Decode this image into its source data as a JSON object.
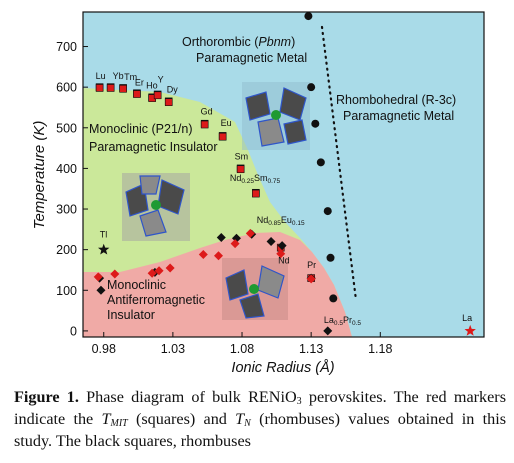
{
  "chart_data": {
    "type": "scatter",
    "xlabel": "Ionic Radius (Å)",
    "ylabel": "Temperature (K)",
    "xlim": [
      0.965,
      1.255
    ],
    "ylim": [
      -15,
      785
    ],
    "xticks": [
      "0.98",
      "1.03",
      "1.08",
      "1.13",
      "1.18"
    ],
    "yticks": [
      "0",
      "100",
      "200",
      "300",
      "400",
      "500",
      "600",
      "700"
    ],
    "regions": {
      "orthorhombic": {
        "line1": "Orthorombic (Pbnm)",
        "line2": "Paramagnetic Metal",
        "color": "#a9dbe8"
      },
      "rhombohedral": {
        "line1": "Rhombohedral (R-3c)",
        "line2": "Paramagnetic Metal",
        "color": "#a9dbe8"
      },
      "monoclinic_ins": {
        "line1": "Monoclinic (P21/n)",
        "line2": "Paramagnetic Insulator",
        "color": "#cbe89a"
      },
      "monoclinic_afm": {
        "line1": "Monoclinic",
        "line2": "Antiferromagnetic",
        "line3": "Insulator",
        "color": "#f0aaa6"
      }
    },
    "element_labels": [
      {
        "text": "Lu",
        "x": 0.977,
        "y": 600
      },
      {
        "text": "Yb",
        "x": 0.985,
        "y": 600
      },
      {
        "text": "Tm",
        "x": 0.994,
        "y": 598
      },
      {
        "text": "Er",
        "x": 1.004,
        "y": 585
      },
      {
        "text": "Ho",
        "x": 1.015,
        "y": 575
      },
      {
        "text": "Y",
        "x": 1.019,
        "y": 582
      },
      {
        "text": "Dy",
        "x": 1.027,
        "y": 565
      },
      {
        "text": "Gd",
        "x": 1.053,
        "y": 510
      },
      {
        "text": "Eu",
        "x": 1.066,
        "y": 480
      },
      {
        "text": "Sm",
        "x": 1.079,
        "y": 400
      },
      {
        "text": "Nd0.25Sm0.75",
        "x": 1.09,
        "y": 340
      },
      {
        "text": "Nd0.85Eu0.15",
        "x": 1.108,
        "y": 236
      },
      {
        "text": "Nd",
        "x": 1.109,
        "y": 200
      },
      {
        "text": "Tl",
        "x": 0.98,
        "y": 205
      },
      {
        "text": "Pr",
        "x": 1.13,
        "y": 130
      },
      {
        "text": "La0.5Pr0.5",
        "x": 1.145,
        "y": 0
      },
      {
        "text": "La",
        "x": 1.245,
        "y": 0
      }
    ],
    "series": [
      {
        "marker": "square",
        "color": "#111111",
        "x": [
          0.977,
          0.985,
          0.994,
          1.004,
          1.015,
          1.019,
          1.027,
          1.053,
          1.066,
          1.079,
          1.09
        ],
        "y": [
          600,
          600,
          598,
          585,
          575,
          582,
          565,
          510,
          480,
          400,
          340
        ]
      },
      {
        "marker": "square",
        "color": "#dd1a1a",
        "x": [
          0.977,
          0.985,
          0.994,
          1.004,
          1.015,
          1.019,
          1.027,
          1.053,
          1.066,
          1.079,
          1.09,
          1.108,
          1.13
        ],
        "y": [
          598,
          598,
          596,
          583,
          573,
          580,
          563,
          508,
          478,
          398,
          338,
          205,
          130
        ]
      },
      {
        "marker": "diamond",
        "color": "#111111",
        "x": [
          0.977,
          0.978,
          1.017,
          1.065,
          1.076,
          1.087,
          1.101,
          1.109,
          1.13,
          1.142
        ],
        "y": [
          130,
          100,
          144,
          230,
          228,
          238,
          220,
          210,
          130,
          0
        ]
      },
      {
        "marker": "diamond",
        "color": "#dd1a1a",
        "x": [
          0.976,
          0.988,
          1.015,
          1.02,
          1.028,
          1.052,
          1.063,
          1.075,
          1.086,
          1.108,
          1.13
        ],
        "y": [
          133,
          140,
          142,
          148,
          155,
          188,
          185,
          215,
          240,
          190,
          128
        ]
      },
      {
        "marker": "circle",
        "color": "#111111",
        "x": [
          1.128,
          1.13,
          1.133,
          1.137,
          1.142,
          1.144,
          1.146
        ],
        "y": [
          775,
          600,
          510,
          415,
          295,
          180,
          80
        ]
      },
      {
        "marker": "star",
        "color": "#111111",
        "x": [
          0.98
        ],
        "y": [
          200
        ]
      },
      {
        "marker": "star",
        "color": "#dd1a1a",
        "x": [
          1.245
        ],
        "y": [
          0
        ]
      }
    ]
  },
  "caption": {
    "label": "Figure 1.",
    "line1": "Phase diagram of bulk RENiO",
    "line1_sub": "3",
    "line1_end": " perovskites. The red",
    "line2": "markers indicate the ",
    "tmit": "T",
    "tmit_sub": "MIT",
    "line2_mid": " (squares) and ",
    "tn": "T",
    "tn_sub": "N",
    "line2_end": " (rhombuses)",
    "line3": "values obtained in this study. The black squares, rhombuses"
  }
}
